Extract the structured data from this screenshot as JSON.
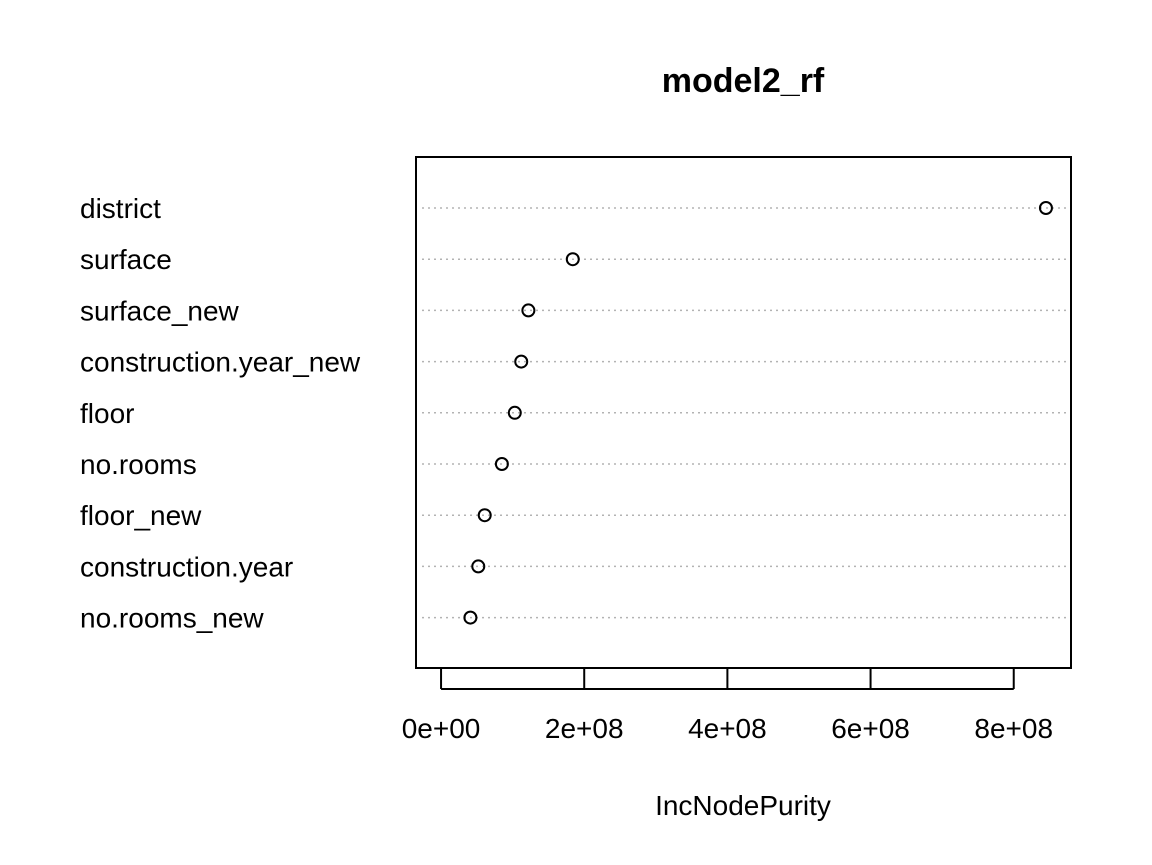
{
  "chart_data": {
    "type": "scatter",
    "subtype": "dotchart",
    "title": "model2_rf",
    "xlabel": "IncNodePurity",
    "ylabel": "",
    "categories": [
      "district",
      "surface",
      "surface_new",
      "construction.year_new",
      "floor",
      "no.rooms",
      "floor_new",
      "construction.year",
      "no.rooms_new"
    ],
    "values": [
      845000000,
      184000000,
      122000000,
      112000000,
      103000000,
      85000000,
      61000000,
      52000000,
      41000000
    ],
    "xlim": [
      -35000000,
      880000000
    ],
    "xticks": [
      0,
      200000000,
      400000000,
      600000000,
      800000000
    ],
    "xtick_labels": [
      "0e+00",
      "2e+08",
      "4e+08",
      "6e+08",
      "8e+08"
    ],
    "grid": "dotted horizontal guide lines",
    "legend": "none"
  }
}
